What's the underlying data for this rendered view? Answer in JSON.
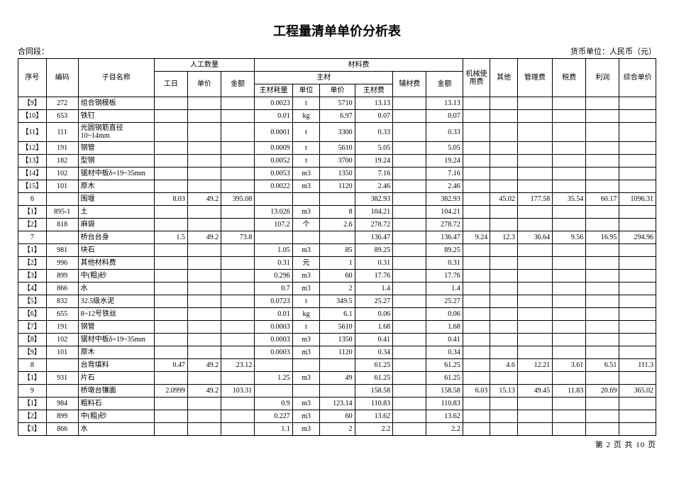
{
  "title": "工程量清单单价分析表",
  "contract_label": "合同段：",
  "currency_label": "货币单位：人民币（元）",
  "pager": {
    "prefix": "第",
    "page": "2",
    "mid": "页 共",
    "total": "10",
    "suffix": "页"
  },
  "head": {
    "seq": "序号",
    "code": "编码",
    "name": "子目名称",
    "labor": "人工数量",
    "gr": "工日",
    "dj": "单价",
    "je": "金额",
    "material": "材料费",
    "zc": "主材",
    "zhl": "主材耗量",
    "dw": "单位",
    "zdj": "单价",
    "zcf": "主材费",
    "fcf": "辅材费",
    "je2": "金额",
    "jx": "机械使用费",
    "qt": "其他",
    "glf": "管理费",
    "sf": "税费",
    "lr": "利润",
    "zh": "综合单价"
  },
  "rows": [
    {
      "seq": "【9】",
      "code": "272",
      "name": "组合钢模板",
      "gr": "",
      "dj": "",
      "je": "",
      "zhl": "0.0023",
      "dw": "t",
      "zdj": "5710",
      "zcf": "13.13",
      "fcf": "",
      "je2": "13.13",
      "jx": "",
      "qt": "",
      "glf": "",
      "sf": "",
      "lr": "",
      "zh": ""
    },
    {
      "seq": "【10】",
      "code": "653",
      "name": "铁钉",
      "gr": "",
      "dj": "",
      "je": "",
      "zhl": "0.01",
      "dw": "kg",
      "zdj": "6.97",
      "zcf": "0.07",
      "fcf": "",
      "je2": "0.07",
      "jx": "",
      "qt": "",
      "glf": "",
      "sf": "",
      "lr": "",
      "zh": ""
    },
    {
      "seq": "【11】",
      "code": "111",
      "name": "光圆钢筋直径10~14mm",
      "gr": "",
      "dj": "",
      "je": "",
      "zhl": "0.0001",
      "dw": "t",
      "zdj": "3300",
      "zcf": "0.33",
      "fcf": "",
      "je2": "0.33",
      "jx": "",
      "qt": "",
      "glf": "",
      "sf": "",
      "lr": "",
      "zh": ""
    },
    {
      "seq": "【12】",
      "code": "191",
      "name": "钢管",
      "gr": "",
      "dj": "",
      "je": "",
      "zhl": "0.0009",
      "dw": "t",
      "zdj": "5610",
      "zcf": "5.05",
      "fcf": "",
      "je2": "5.05",
      "jx": "",
      "qt": "",
      "glf": "",
      "sf": "",
      "lr": "",
      "zh": ""
    },
    {
      "seq": "【13】",
      "code": "182",
      "name": "型钢",
      "gr": "",
      "dj": "",
      "je": "",
      "zhl": "0.0052",
      "dw": "t",
      "zdj": "3700",
      "zcf": "19.24",
      "fcf": "",
      "je2": "19.24",
      "jx": "",
      "qt": "",
      "glf": "",
      "sf": "",
      "lr": "",
      "zh": ""
    },
    {
      "seq": "【14】",
      "code": "102",
      "name": "锯材中板δ=19~35mm",
      "gr": "",
      "dj": "",
      "je": "",
      "zhl": "0.0053",
      "dw": "m3",
      "zdj": "1350",
      "zcf": "7.16",
      "fcf": "",
      "je2": "7.16",
      "jx": "",
      "qt": "",
      "glf": "",
      "sf": "",
      "lr": "",
      "zh": ""
    },
    {
      "seq": "【15】",
      "code": "101",
      "name": "原木",
      "gr": "",
      "dj": "",
      "je": "",
      "zhl": "0.0022",
      "dw": "m3",
      "zdj": "1120",
      "zcf": "2.46",
      "fcf": "",
      "je2": "2.46",
      "jx": "",
      "qt": "",
      "glf": "",
      "sf": "",
      "lr": "",
      "zh": ""
    },
    {
      "seq": "6",
      "code": "",
      "name": "围堰",
      "gr": "8.03",
      "dj": "49.2",
      "je": "395.08",
      "zhl": "",
      "dw": "",
      "zdj": "",
      "zcf": "382.93",
      "fcf": "",
      "je2": "382.93",
      "jx": "",
      "qt": "45.02",
      "glf": "177.58",
      "sf": "35.54",
      "lr": "60.17",
      "zh": "1096.31"
    },
    {
      "seq": "【1】",
      "code": "895-1",
      "name": "土",
      "gr": "",
      "dj": "",
      "je": "",
      "zhl": "13.026",
      "dw": "m3",
      "zdj": "8",
      "zcf": "104.21",
      "fcf": "",
      "je2": "104.21",
      "jx": "",
      "qt": "",
      "glf": "",
      "sf": "",
      "lr": "",
      "zh": ""
    },
    {
      "seq": "【2】",
      "code": "818",
      "name": "麻袋",
      "gr": "",
      "dj": "",
      "je": "",
      "zhl": "107.2",
      "dw": "个",
      "zdj": "2.6",
      "zcf": "278.72",
      "fcf": "",
      "je2": "278.72",
      "jx": "",
      "qt": "",
      "glf": "",
      "sf": "",
      "lr": "",
      "zh": ""
    },
    {
      "seq": "7",
      "code": "",
      "name": "桥台台身",
      "gr": "1.5",
      "dj": "49.2",
      "je": "73.8",
      "zhl": "",
      "dw": "",
      "zdj": "",
      "zcf": "136.47",
      "fcf": "",
      "je2": "136.47",
      "jx": "9.24",
      "qt": "12.3",
      "glf": "36.64",
      "sf": "9.56",
      "lr": "16.95",
      "zh": "294.96"
    },
    {
      "seq": "【1】",
      "code": "981",
      "name": "块石",
      "gr": "",
      "dj": "",
      "je": "",
      "zhl": "1.05",
      "dw": "m3",
      "zdj": "85",
      "zcf": "89.25",
      "fcf": "",
      "je2": "89.25",
      "jx": "",
      "qt": "",
      "glf": "",
      "sf": "",
      "lr": "",
      "zh": ""
    },
    {
      "seq": "【2】",
      "code": "996",
      "name": "其他材料费",
      "gr": "",
      "dj": "",
      "je": "",
      "zhl": "0.31",
      "dw": "元",
      "zdj": "1",
      "zcf": "0.31",
      "fcf": "",
      "je2": "0.31",
      "jx": "",
      "qt": "",
      "glf": "",
      "sf": "",
      "lr": "",
      "zh": ""
    },
    {
      "seq": "【3】",
      "code": "899",
      "name": "中(粗)砂",
      "gr": "",
      "dj": "",
      "je": "",
      "zhl": "0.296",
      "dw": "m3",
      "zdj": "60",
      "zcf": "17.76",
      "fcf": "",
      "je2": "17.76",
      "jx": "",
      "qt": "",
      "glf": "",
      "sf": "",
      "lr": "",
      "zh": ""
    },
    {
      "seq": "【4】",
      "code": "866",
      "name": "水",
      "gr": "",
      "dj": "",
      "je": "",
      "zhl": "0.7",
      "dw": "m3",
      "zdj": "2",
      "zcf": "1.4",
      "fcf": "",
      "je2": "1.4",
      "jx": "",
      "qt": "",
      "glf": "",
      "sf": "",
      "lr": "",
      "zh": ""
    },
    {
      "seq": "【5】",
      "code": "832",
      "name": "32.5级水泥",
      "gr": "",
      "dj": "",
      "je": "",
      "zhl": "0.0723",
      "dw": "t",
      "zdj": "349.5",
      "zcf": "25.27",
      "fcf": "",
      "je2": "25.27",
      "jx": "",
      "qt": "",
      "glf": "",
      "sf": "",
      "lr": "",
      "zh": ""
    },
    {
      "seq": "【6】",
      "code": "655",
      "name": "8~12号铁丝",
      "gr": "",
      "dj": "",
      "je": "",
      "zhl": "0.01",
      "dw": "kg",
      "zdj": "6.1",
      "zcf": "0.06",
      "fcf": "",
      "je2": "0.06",
      "jx": "",
      "qt": "",
      "glf": "",
      "sf": "",
      "lr": "",
      "zh": ""
    },
    {
      "seq": "【7】",
      "code": "191",
      "name": "钢管",
      "gr": "",
      "dj": "",
      "je": "",
      "zhl": "0.0003",
      "dw": "t",
      "zdj": "5610",
      "zcf": "1.68",
      "fcf": "",
      "je2": "1.68",
      "jx": "",
      "qt": "",
      "glf": "",
      "sf": "",
      "lr": "",
      "zh": ""
    },
    {
      "seq": "【8】",
      "code": "102",
      "name": "锯材中板δ=19~35mm",
      "gr": "",
      "dj": "",
      "je": "",
      "zhl": "0.0003",
      "dw": "m3",
      "zdj": "1350",
      "zcf": "0.41",
      "fcf": "",
      "je2": "0.41",
      "jx": "",
      "qt": "",
      "glf": "",
      "sf": "",
      "lr": "",
      "zh": ""
    },
    {
      "seq": "【9】",
      "code": "101",
      "name": "原木",
      "gr": "",
      "dj": "",
      "je": "",
      "zhl": "0.0003",
      "dw": "m3",
      "zdj": "1120",
      "zcf": "0.34",
      "fcf": "",
      "je2": "0.34",
      "jx": "",
      "qt": "",
      "glf": "",
      "sf": "",
      "lr": "",
      "zh": ""
    },
    {
      "seq": "8",
      "code": "",
      "name": "台背填料",
      "gr": "0.47",
      "dj": "49.2",
      "je": "23.12",
      "zhl": "",
      "dw": "",
      "zdj": "",
      "zcf": "61.25",
      "fcf": "",
      "je2": "61.25",
      "jx": "",
      "qt": "4.6",
      "glf": "12.21",
      "sf": "3.61",
      "lr": "6.51",
      "zh": "111.3"
    },
    {
      "seq": "【1】",
      "code": "931",
      "name": "片石",
      "gr": "",
      "dj": "",
      "je": "",
      "zhl": "1.25",
      "dw": "m3",
      "zdj": "49",
      "zcf": "61.25",
      "fcf": "",
      "je2": "61.25",
      "jx": "",
      "qt": "",
      "glf": "",
      "sf": "",
      "lr": "",
      "zh": ""
    },
    {
      "seq": "9",
      "code": "",
      "name": "桥墩台镶面",
      "gr": "2.0999",
      "dj": "49.2",
      "je": "103.31",
      "zhl": "",
      "dw": "",
      "zdj": "",
      "zcf": "158.58",
      "fcf": "",
      "je2": "158.58",
      "jx": "6.03",
      "qt": "15.13",
      "glf": "49.45",
      "sf": "11.83",
      "lr": "20.69",
      "zh": "365.02"
    },
    {
      "seq": "【1】",
      "code": "984",
      "name": "粗料石",
      "gr": "",
      "dj": "",
      "je": "",
      "zhl": "0.9",
      "dw": "m3",
      "zdj": "123.14",
      "zcf": "110.83",
      "fcf": "",
      "je2": "110.83",
      "jx": "",
      "qt": "",
      "glf": "",
      "sf": "",
      "lr": "",
      "zh": ""
    },
    {
      "seq": "【2】",
      "code": "899",
      "name": "中(粗)砂",
      "gr": "",
      "dj": "",
      "je": "",
      "zhl": "0.227",
      "dw": "m3",
      "zdj": "60",
      "zcf": "13.62",
      "fcf": "",
      "je2": "13.62",
      "jx": "",
      "qt": "",
      "glf": "",
      "sf": "",
      "lr": "",
      "zh": ""
    },
    {
      "seq": "【3】",
      "code": "866",
      "name": "水",
      "gr": "",
      "dj": "",
      "je": "",
      "zhl": "1.1",
      "dw": "m3",
      "zdj": "2",
      "zcf": "2.2",
      "fcf": "",
      "je2": "2.2",
      "jx": "",
      "qt": "",
      "glf": "",
      "sf": "",
      "lr": "",
      "zh": ""
    }
  ]
}
